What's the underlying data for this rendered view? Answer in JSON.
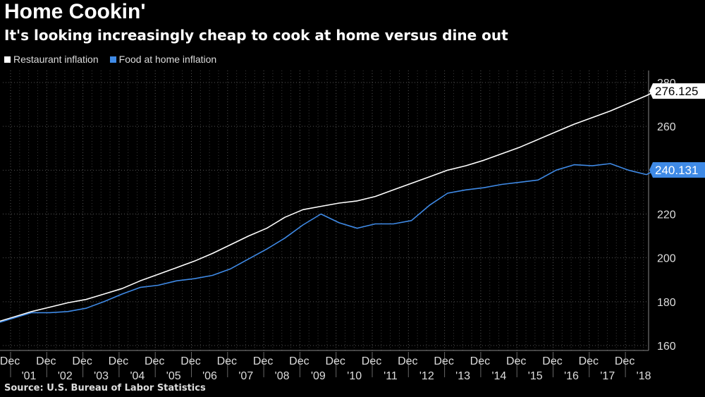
{
  "title": "Home Cookin'",
  "subtitle": "It's looking increasingly cheap to cook at home versus dine out",
  "source": "Source: U.S. Bureau of Labor Statistics",
  "chart_data": {
    "type": "line",
    "ylim": [
      160,
      280
    ],
    "yticks": [
      160,
      180,
      200,
      220,
      240,
      260,
      280
    ],
    "x_tick_month": "Dec",
    "x_ticks": [
      {
        "year": 2001,
        "label": "'01"
      },
      {
        "year": 2002,
        "label": "'02"
      },
      {
        "year": 2003,
        "label": "'03"
      },
      {
        "year": 2004,
        "label": "'04"
      },
      {
        "year": 2005,
        "label": "'05"
      },
      {
        "year": 2006,
        "label": "'06"
      },
      {
        "year": 2007,
        "label": "'07"
      },
      {
        "year": 2008,
        "label": "'08"
      },
      {
        "year": 2009,
        "label": "'09"
      },
      {
        "year": 2010,
        "label": "'10"
      },
      {
        "year": 2011,
        "label": "'11"
      },
      {
        "year": 2012,
        "label": "'12"
      },
      {
        "year": 2013,
        "label": "'13"
      },
      {
        "year": 2014,
        "label": "'14"
      },
      {
        "year": 2015,
        "label": "'15"
      },
      {
        "year": 2016,
        "label": "'16"
      },
      {
        "year": 2017,
        "label": "'17"
      },
      {
        "year": 2018,
        "label": "'18"
      }
    ],
    "grid": true,
    "legend_position": "top-left",
    "series": [
      {
        "name": "Restaurant inflation",
        "color": "#ffffff",
        "last_value": "276.125",
        "points": [
          [
            "2001-01",
            169.0
          ],
          [
            "2001-07",
            170.5
          ],
          [
            "2002-01",
            173.0
          ],
          [
            "2002-07",
            175.5
          ],
          [
            "2003-01",
            177.5
          ],
          [
            "2003-07",
            179.5
          ],
          [
            "2004-01",
            181.0
          ],
          [
            "2004-07",
            183.5
          ],
          [
            "2005-01",
            186.0
          ],
          [
            "2005-07",
            189.5
          ],
          [
            "2006-01",
            192.5
          ],
          [
            "2006-07",
            195.5
          ],
          [
            "2007-01",
            198.5
          ],
          [
            "2007-07",
            202.0
          ],
          [
            "2008-01",
            206.0
          ],
          [
            "2008-07",
            210.0
          ],
          [
            "2009-01",
            213.5
          ],
          [
            "2009-07",
            218.5
          ],
          [
            "2010-01",
            222.0
          ],
          [
            "2010-07",
            223.5
          ],
          [
            "2011-01",
            225.0
          ],
          [
            "2011-07",
            226.0
          ],
          [
            "2012-01",
            228.0
          ],
          [
            "2012-07",
            231.0
          ],
          [
            "2013-01",
            234.0
          ],
          [
            "2013-07",
            237.0
          ],
          [
            "2014-01",
            240.0
          ],
          [
            "2014-07",
            242.0
          ],
          [
            "2015-01",
            244.5
          ],
          [
            "2015-07",
            247.5
          ],
          [
            "2016-01",
            250.5
          ],
          [
            "2016-07",
            254.0
          ],
          [
            "2017-01",
            257.5
          ],
          [
            "2017-07",
            261.0
          ],
          [
            "2018-01",
            264.0
          ],
          [
            "2018-07",
            267.0
          ],
          [
            "2019-01",
            270.5
          ],
          [
            "2019-07",
            274.0
          ],
          [
            "2019-10",
            276.1
          ]
        ]
      },
      {
        "name": "Food at home inflation",
        "color": "#3f8ae6",
        "last_value": "240.131",
        "points": [
          [
            "2001-01",
            168.0
          ],
          [
            "2001-07",
            170.0
          ],
          [
            "2002-01",
            172.5
          ],
          [
            "2002-07",
            175.0
          ],
          [
            "2003-01",
            175.0
          ],
          [
            "2003-07",
            175.5
          ],
          [
            "2004-01",
            177.0
          ],
          [
            "2004-07",
            180.0
          ],
          [
            "2005-01",
            183.5
          ],
          [
            "2005-07",
            186.5
          ],
          [
            "2006-01",
            187.5
          ],
          [
            "2006-07",
            189.5
          ],
          [
            "2007-01",
            190.5
          ],
          [
            "2007-07",
            192.0
          ],
          [
            "2008-01",
            195.0
          ],
          [
            "2008-07",
            199.5
          ],
          [
            "2009-01",
            204.0
          ],
          [
            "2009-07",
            209.0
          ],
          [
            "2010-01",
            215.0
          ],
          [
            "2010-07",
            220.0
          ],
          [
            "2011-01",
            216.0
          ],
          [
            "2011-07",
            213.5
          ],
          [
            "2012-01",
            215.5
          ],
          [
            "2012-07",
            215.5
          ],
          [
            "2013-01",
            217.0
          ],
          [
            "2013-07",
            224.0
          ],
          [
            "2014-01",
            229.5
          ],
          [
            "2014-07",
            231.0
          ],
          [
            "2015-01",
            232.0
          ],
          [
            "2015-07",
            233.5
          ],
          [
            "2016-01",
            234.5
          ],
          [
            "2016-07",
            235.5
          ],
          [
            "2017-01",
            240.0
          ],
          [
            "2017-07",
            242.5
          ],
          [
            "2018-01",
            242.0
          ],
          [
            "2018-07",
            243.0
          ],
          [
            "2019-01",
            240.0
          ],
          [
            "2019-07",
            238.0
          ],
          [
            "2019-10",
            240.1
          ]
        ]
      }
    ]
  }
}
